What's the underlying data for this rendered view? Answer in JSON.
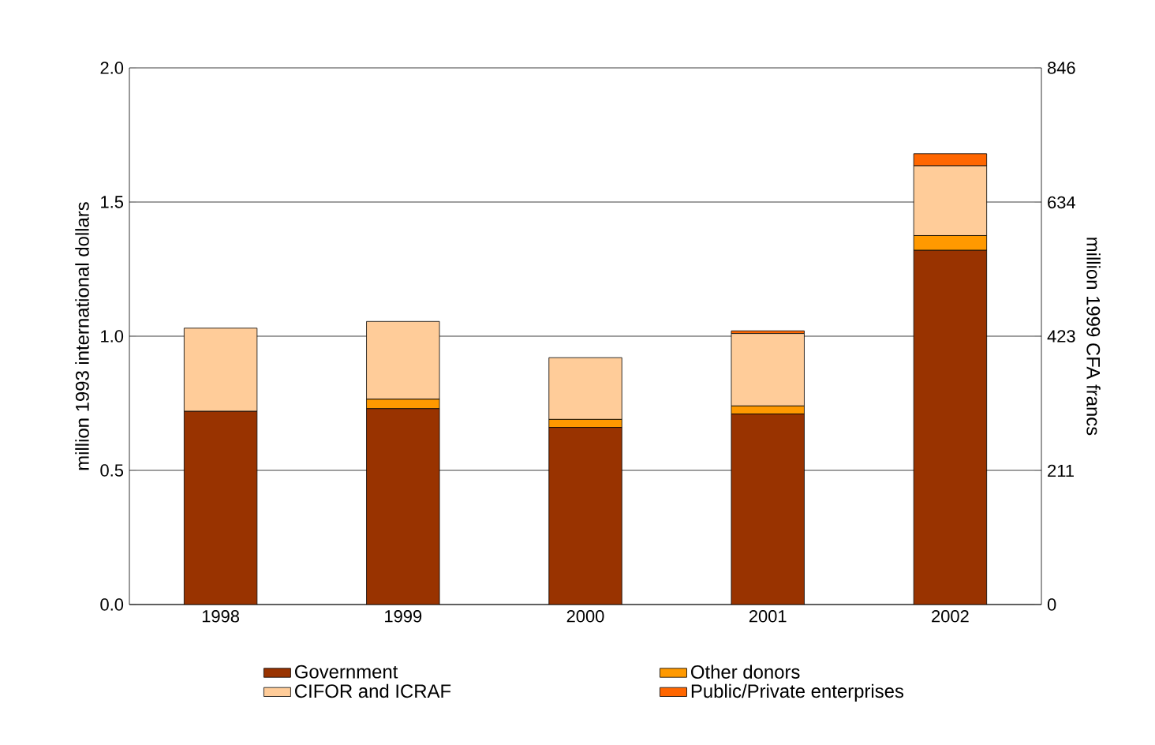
{
  "chart_data": {
    "type": "bar",
    "stacked": true,
    "categories": [
      "1998",
      "1999",
      "2000",
      "2001",
      "2002"
    ],
    "ylabel": "million 1993 international dollars",
    "y2label": "million 1999 CFA francs",
    "ylim": [
      0,
      2.0
    ],
    "yticks": [
      {
        "value": 0,
        "label": "0.0"
      },
      {
        "value": 0.5,
        "label": "0.5"
      },
      {
        "value": 1.0,
        "label": "1.0"
      },
      {
        "value": 1.5,
        "label": "1.5"
      },
      {
        "value": 2.0,
        "label": "2.0"
      }
    ],
    "y2lim": [
      0,
      846
    ],
    "y2ticks": [
      0,
      211,
      423,
      634,
      846
    ],
    "grid": "y",
    "legend": "bottom",
    "series": [
      {
        "name": "Government",
        "color": "#993300",
        "values": [
          0.72,
          0.73,
          0.66,
          0.71,
          1.32
        ]
      },
      {
        "name": "Other donors",
        "color": "#ff9900",
        "values": [
          0,
          0.035,
          0.03,
          0.03,
          0.055
        ]
      },
      {
        "name": "CIFOR and ICRAF",
        "color": "#ffcc99",
        "values": [
          0.31,
          0.29,
          0.23,
          0.27,
          0.26
        ]
      },
      {
        "name": "Public/Private enterprises",
        "color": "#ff6600",
        "values": [
          0,
          0,
          0,
          0.01,
          0.045
        ]
      }
    ]
  }
}
